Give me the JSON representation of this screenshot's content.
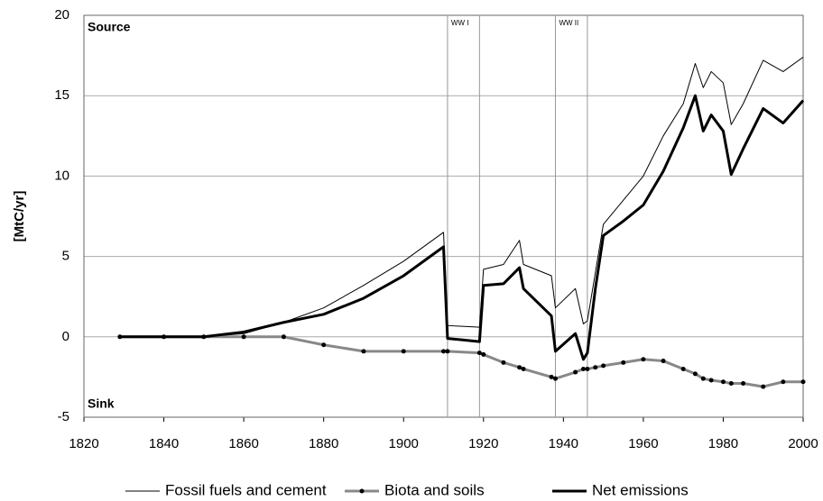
{
  "chart_data": {
    "type": "line",
    "y_label": "[MtC/yr]",
    "annotations": [
      {
        "text": "Source",
        "x": 1820,
        "y": 20
      },
      {
        "text": "Sink",
        "x": 1820,
        "y": -5
      }
    ],
    "periods": [
      {
        "label": "WW I",
        "start": 1911,
        "end": 1919
      },
      {
        "label": "WW II",
        "start": 1938,
        "end": 1946
      }
    ],
    "x": [
      1829,
      1840,
      1850,
      1860,
      1870,
      1880,
      1890,
      1900,
      1910,
      1911,
      1919,
      1920,
      1925,
      1929,
      1930,
      1937,
      1938,
      1943,
      1945,
      1946,
      1948,
      1950,
      1955,
      1960,
      1965,
      1970,
      1973,
      1975,
      1977,
      1980,
      1982,
      1985,
      1990,
      1995,
      2000
    ],
    "series": [
      {
        "name": "Fossil fuels and cement",
        "color": "#000000",
        "width": 1,
        "markers": false,
        "values": [
          0,
          0,
          0,
          0.2,
          0.9,
          1.8,
          3.2,
          4.7,
          6.5,
          0.7,
          0.6,
          4.2,
          4.5,
          6,
          4.5,
          3.8,
          1.8,
          3,
          0.8,
          1,
          4,
          7,
          8.5,
          10,
          12.5,
          14.5,
          17,
          15.5,
          16.5,
          15.8,
          13.2,
          14.5,
          17.2,
          16.5,
          17.4
        ]
      },
      {
        "name": "Biota and soils",
        "color": "#888888",
        "width": 3,
        "markers": true,
        "values": [
          0,
          0,
          0,
          0,
          0,
          -0.5,
          -0.9,
          -0.9,
          -0.9,
          -0.9,
          -1,
          -1.1,
          -1.6,
          -1.9,
          -2,
          -2.5,
          -2.6,
          -2.2,
          -2,
          -2,
          -1.9,
          -1.8,
          -1.6,
          -1.4,
          -1.5,
          -2,
          -2.3,
          -2.6,
          -2.7,
          -2.8,
          -2.9,
          -2.9,
          -3.1,
          -2.8,
          -2.8
        ]
      },
      {
        "name": "Net emissions",
        "color": "#000000",
        "width": 3,
        "markers": false,
        "values": [
          0,
          0,
          0,
          0.3,
          0.9,
          1.4,
          2.4,
          3.8,
          5.6,
          -0.1,
          -0.3,
          3.2,
          3.3,
          4.3,
          3,
          1.3,
          -0.9,
          0.2,
          -1.4,
          -1,
          3,
          6.3,
          7.2,
          8.2,
          10.3,
          13,
          15,
          12.8,
          13.8,
          12.8,
          10.1,
          11.7,
          14.2,
          13.3,
          14.7
        ]
      }
    ],
    "xlim": [
      1820,
      2000
    ],
    "xticks": [
      1820,
      1840,
      1860,
      1880,
      1900,
      1920,
      1940,
      1960,
      1980,
      2000
    ],
    "ylim": [
      -5,
      20
    ],
    "yticks": [
      -5,
      0,
      5,
      10,
      15,
      20
    ],
    "grid": true,
    "legend": "bottom"
  }
}
